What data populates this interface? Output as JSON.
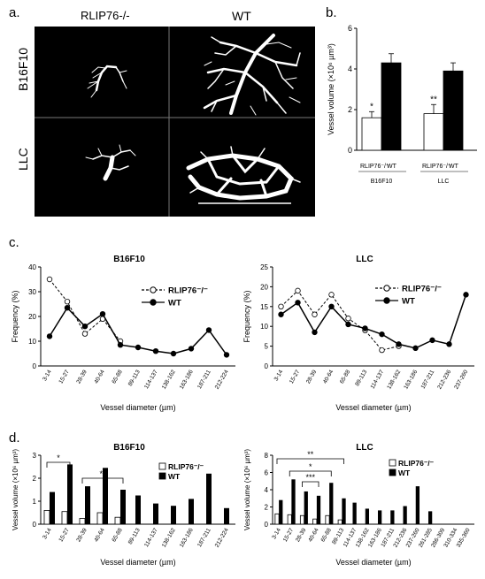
{
  "panels": {
    "a": "a.",
    "b": "b.",
    "c": "c.",
    "d": "d."
  },
  "panel_a": {
    "col_labels": [
      "RLIP76-/-",
      "WT"
    ],
    "row_labels": [
      "B16F10",
      "LLC"
    ]
  },
  "colors": {
    "wt": "#000000",
    "rlip": "#ffffff",
    "image_bg": "#000000",
    "vessel": "#ffffff"
  },
  "chart_data": [
    {
      "id": "b",
      "type": "bar",
      "ylabel": "Vessel volume (×10⁶ µm³)",
      "ylim": [
        0,
        6
      ],
      "yticks": [
        0,
        2,
        4,
        6
      ],
      "groups": [
        "B16F10",
        "LLC"
      ],
      "bar_labels": [
        "RLIP76⁻/⁻",
        "WT"
      ],
      "series": [
        {
          "name": "RLIP76-/-",
          "values": [
            1.6,
            1.8
          ],
          "errors": [
            0.3,
            0.45
          ]
        },
        {
          "name": "WT",
          "values": [
            4.3,
            3.9
          ],
          "errors": [
            0.45,
            0.4
          ]
        }
      ],
      "annotations": [
        "*",
        "**"
      ]
    },
    {
      "id": "c1",
      "type": "line",
      "title": "B16F10",
      "xlabel": "Vessel diameter (µm)",
      "ylabel": "Frequency (%)",
      "ylim": [
        0,
        40
      ],
      "yticks": [
        0,
        10,
        20,
        30,
        40
      ],
      "categories": [
        "3-14",
        "15-27",
        "28-39",
        "40-64",
        "65-88",
        "89-113",
        "114-137",
        "138-162",
        "163-186",
        "187-211",
        "212-224"
      ],
      "series": [
        {
          "name": "RLIP76-/-",
          "values": [
            35,
            26,
            13,
            19,
            10,
            null,
            null,
            null,
            null,
            null,
            null
          ]
        },
        {
          "name": "WT",
          "values": [
            12,
            23.5,
            16,
            21,
            8.5,
            7.5,
            6,
            5,
            7,
            14.5,
            4.5
          ]
        }
      ],
      "legend": [
        "RLIP76⁻/⁻",
        "WT"
      ]
    },
    {
      "id": "c2",
      "type": "line",
      "title": "LLC",
      "xlabel": "Vessel diameter (µm)",
      "ylabel": "Frequency (%)",
      "ylim": [
        0,
        25
      ],
      "yticks": [
        0,
        5,
        10,
        15,
        20,
        25
      ],
      "categories": [
        "3-14",
        "15-27",
        "28-39",
        "40-64",
        "65-88",
        "89-113",
        "114-137",
        "138-162",
        "163-186",
        "187-211",
        "212-236",
        "237-260"
      ],
      "series": [
        {
          "name": "RLIP76-/-",
          "values": [
            15,
            19,
            13,
            18,
            12,
            9,
            4,
            5,
            null,
            null,
            null,
            null
          ]
        },
        {
          "name": "WT",
          "values": [
            13,
            16,
            8.5,
            15,
            10.5,
            9.5,
            8,
            5.5,
            4.5,
            6.5,
            5.5,
            18
          ]
        }
      ],
      "legend": [
        "RLIP76⁻/⁻",
        "WT"
      ]
    },
    {
      "id": "d1",
      "type": "bar",
      "title": "B16F10",
      "xlabel": "Vessel diameter (µm)",
      "ylabel": "Vessel volume (×10⁶ µm³)",
      "ylim": [
        0,
        3
      ],
      "yticks": [
        0,
        1,
        2,
        3
      ],
      "categories": [
        "3-14",
        "15-27",
        "28-39",
        "40-64",
        "65-88",
        "89-113",
        "114-137",
        "138-162",
        "163-186",
        "187-211",
        "212-224"
      ],
      "series": [
        {
          "name": "RLIP76-/-",
          "values": [
            0.6,
            0.55,
            0.25,
            0.5,
            0.3,
            null,
            null,
            null,
            null,
            null,
            null
          ]
        },
        {
          "name": "WT",
          "values": [
            1.4,
            2.6,
            1.65,
            2.45,
            1.5,
            1.25,
            0.9,
            0.8,
            1.1,
            2.2,
            0.7
          ]
        }
      ],
      "legend": [
        "RLIP76⁻/⁻",
        "WT"
      ],
      "annotations": [
        "*",
        "**"
      ]
    },
    {
      "id": "d2",
      "type": "bar",
      "title": "LLC",
      "xlabel": "Vessel diameter (µm)",
      "ylabel": "Vessel volume (×10⁶ µm³)",
      "ylim": [
        0,
        8
      ],
      "yticks": [
        0,
        2,
        4,
        6,
        8
      ],
      "categories": [
        "3-14",
        "15-27",
        "28-39",
        "40-64",
        "65-88",
        "89-113",
        "114-137",
        "138-162",
        "163-186",
        "187-211",
        "212-236",
        "237-260",
        "261-285",
        "286-309",
        "310-334",
        "335-360"
      ],
      "series": [
        {
          "name": "RLIP76-/-",
          "values": [
            1.2,
            1.1,
            1.0,
            0.6,
            1.0,
            0.5,
            null,
            null,
            null,
            null,
            null,
            null,
            null,
            null,
            null,
            null
          ]
        },
        {
          "name": "WT",
          "values": [
            2.8,
            5.2,
            3.8,
            3.3,
            4.8,
            3.0,
            2.5,
            1.8,
            1.6,
            1.6,
            2.1,
            4.4,
            1.5,
            null,
            null,
            null
          ]
        }
      ],
      "legend": [
        "RLIP76⁻/⁻",
        "WT"
      ],
      "annotations": [
        "**",
        "*",
        "***"
      ]
    }
  ]
}
